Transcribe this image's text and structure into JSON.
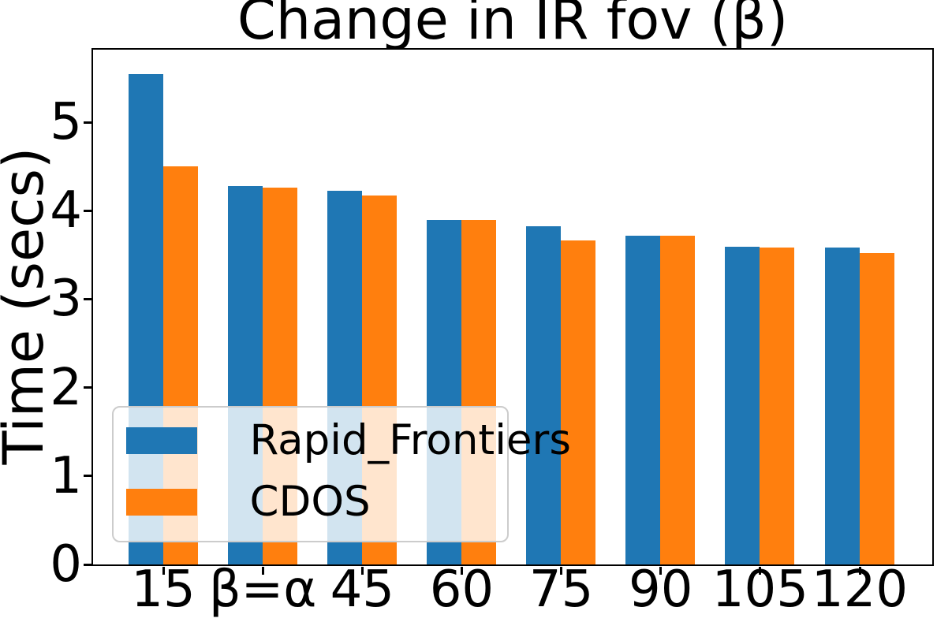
{
  "chart_data": {
    "type": "bar",
    "title": "Change in IR fov (β)",
    "xlabel": "",
    "ylabel": "Time (secs)",
    "categories": [
      "15",
      "β=α",
      "45",
      "60",
      "75",
      "90",
      "105",
      "120"
    ],
    "series": [
      {
        "name": "Rapid_Frontiers",
        "color": "#1f77b4",
        "values": [
          5.54,
          4.27,
          4.22,
          3.89,
          3.82,
          3.71,
          3.59,
          3.58
        ]
      },
      {
        "name": "CDOS",
        "color": "#ff7f0e",
        "values": [
          4.5,
          4.26,
          4.17,
          3.89,
          3.66,
          3.71,
          3.58,
          3.52
        ]
      }
    ],
    "yticks": [
      0,
      1,
      2,
      3,
      4,
      5
    ],
    "ylim": [
      0,
      5.82
    ],
    "legend_position": "lower left",
    "grid": false,
    "colors": {
      "axis": "#000000",
      "legend_border": "#cccccc"
    }
  }
}
